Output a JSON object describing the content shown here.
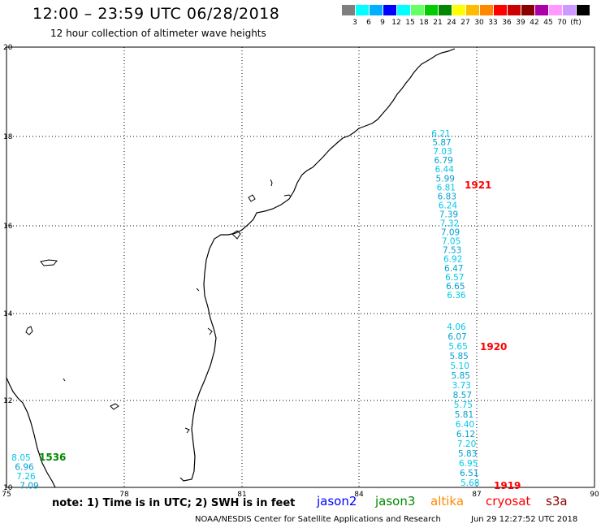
{
  "header": {
    "title": "12:00 – 23:59 UTC 06/28/2018",
    "subtitle": "12 hour collection of altimeter wave heights"
  },
  "colorbar": {
    "colors": [
      "#7f7f7f",
      "#00ffff",
      "#00b0ff",
      "#0000ff",
      "#00ffff",
      "#66ff66",
      "#00cc00",
      "#008800",
      "#ffff00",
      "#ffbb00",
      "#ff8800",
      "#ff0000",
      "#cc0000",
      "#880000",
      "#aa00aa",
      "#ff99ff",
      "#cc99ff",
      "#000000"
    ],
    "labels": [
      "3",
      "6",
      "9",
      "12",
      "15",
      "18",
      "21",
      "24",
      "27",
      "30",
      "33",
      "36",
      "39",
      "42",
      "45",
      "70",
      "(ft)"
    ]
  },
  "axes": {
    "lon_ticks": [
      "75",
      "78",
      "81",
      "84",
      "87",
      "90"
    ],
    "lat_ticks": [
      "20",
      "18",
      "16",
      "14",
      "12",
      "10"
    ]
  },
  "passes": [
    {
      "tag": "1921",
      "tag_color": "#ff0000",
      "values": [
        "6.21",
        "5.87",
        "7.03",
        "6.79",
        "6.44",
        "5.99",
        "6.81",
        "6.83",
        "6.24",
        "7.39",
        "7.32",
        "7.09",
        "7.05",
        "7.53",
        "6.92",
        "6.47",
        "6.57",
        "6.65",
        "6.36"
      ]
    },
    {
      "tag": "1920",
      "tag_color": "#ff0000",
      "values": [
        "4.06",
        "6.07",
        "5.65",
        "5.85",
        "5.10",
        "5.85",
        "3.73",
        "8.57",
        "5.75",
        "5.81",
        "6.40",
        "6.12",
        "7.20",
        "5.83",
        "6.95",
        "6.51",
        "5.68"
      ]
    },
    {
      "tag": "1919",
      "tag_color": "#ff0000",
      "values": []
    },
    {
      "tag": "1536",
      "tag_color": "#008800",
      "values": [
        "8.05",
        "6.96",
        "7.26",
        "7.09"
      ]
    }
  ],
  "footer": {
    "note": "note:  1) Time is in UTC;  2) SWH is in feet",
    "satellites": [
      {
        "name": "jason2",
        "color": "#0000ff"
      },
      {
        "name": "jason3",
        "color": "#008800"
      },
      {
        "name": "altika",
        "color": "#ff8800"
      },
      {
        "name": "cryosat",
        "color": "#ff0000"
      },
      {
        "name": "s3a",
        "color": "#880000"
      }
    ],
    "credit": "NOAA/NESDIS Center for Satellite Applications and Research",
    "timestamp": "Jun 29 12:27:52 UTC 2018"
  }
}
